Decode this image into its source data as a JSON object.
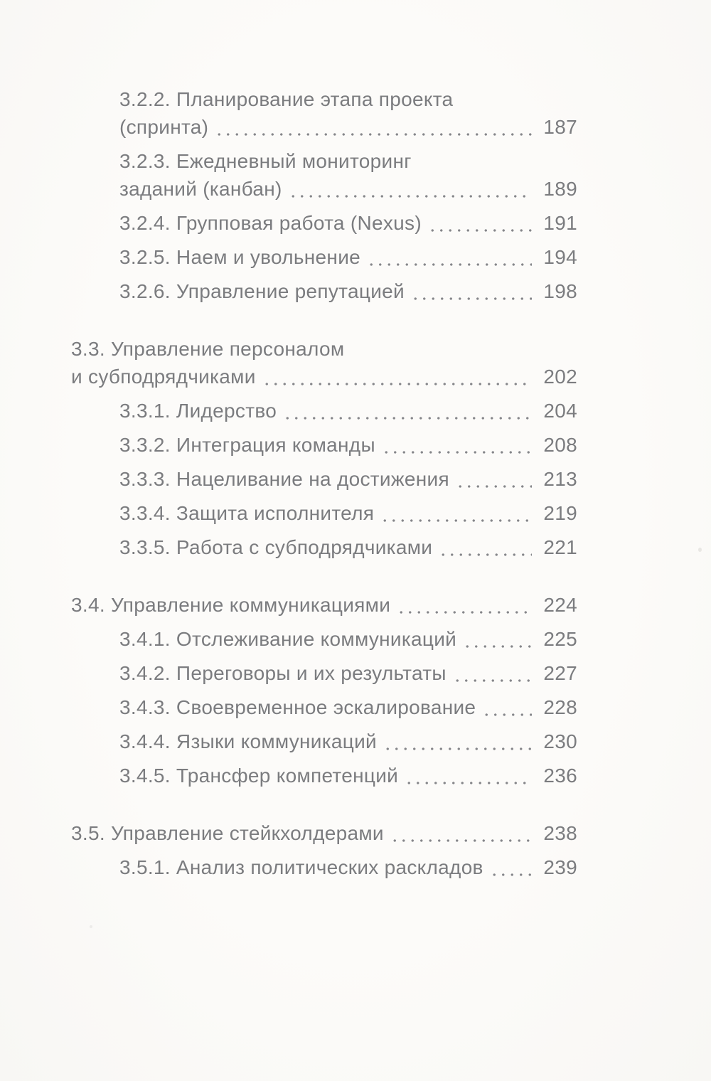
{
  "page": {
    "kind": "book-table-of-contents",
    "background_color": "#fcfbf9",
    "text_color": "#7b7c7f",
    "dot_leader_color": "#85868a"
  },
  "toc": {
    "entries": [
      {
        "level": 2,
        "line1": "3.2.2. Планирование этапа проекта",
        "line2": "(спринта)",
        "page": "187"
      },
      {
        "level": 2,
        "line1": "3.2.3. Ежедневный мониторинг",
        "line2": "заданий (канбан)",
        "page": "189"
      },
      {
        "level": 2,
        "line1": "3.2.4. Групповая работа (Nexus)",
        "page": "191"
      },
      {
        "level": 2,
        "line1": "3.2.5. Наем и увольнение",
        "page": "194"
      },
      {
        "level": 2,
        "line1": "3.2.6. Управление репутацией",
        "page": "198"
      },
      {
        "level": 1,
        "line1": "3.3. Управление персоналом",
        "line2": "и субподрядчиками",
        "page": "202"
      },
      {
        "level": 2,
        "line1": "3.3.1. Лидерство",
        "page": "204"
      },
      {
        "level": 2,
        "line1": "3.3.2. Интеграция команды",
        "page": "208"
      },
      {
        "level": 2,
        "line1": "3.3.3. Нацеливание на достижения",
        "page": "213"
      },
      {
        "level": 2,
        "line1": "3.3.4. Защита исполнителя",
        "page": "219"
      },
      {
        "level": 2,
        "line1": "3.3.5. Работа с субподрядчиками",
        "page": "221"
      },
      {
        "level": 1,
        "line1": "3.4. Управление коммуникациями",
        "page": "224"
      },
      {
        "level": 2,
        "line1": "3.4.1. Отслеживание коммуникаций",
        "page": "225"
      },
      {
        "level": 2,
        "line1": "3.4.2. Переговоры и их результаты",
        "page": "227"
      },
      {
        "level": 2,
        "line1": "3.4.3. Своевременное эскалирование",
        "page": "228"
      },
      {
        "level": 2,
        "line1": "3.4.4. Языки коммуникаций",
        "page": "230"
      },
      {
        "level": 2,
        "line1": "3.4.5. Трансфер компетенций",
        "page": "236"
      },
      {
        "level": 1,
        "line1": "3.5. Управление стейкхолдерами",
        "page": "238"
      },
      {
        "level": 2,
        "line1": "3.5.1. Анализ политических раскладов",
        "page": "239"
      }
    ]
  }
}
